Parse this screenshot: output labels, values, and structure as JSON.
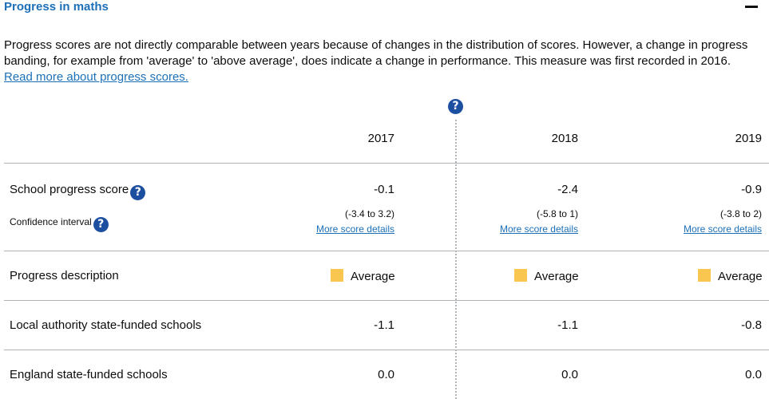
{
  "section": {
    "title": "Progress in maths",
    "intro": "Progress scores are not directly comparable between years because of changes in the distribution of scores. However, a change in progress banding, for example from 'average' to 'above average', does indicate a change in performance. This measure was first recorded in 2016.",
    "read_more": "Read more about progress scores."
  },
  "years": [
    "2017",
    "2018",
    "2019"
  ],
  "rows": {
    "school_progress_label": "School progress score",
    "confidence_label": "Confidence interval",
    "progress_desc_label": "Progress description",
    "la_label": "Local authority state-funded schools",
    "england_label": "England state-funded schools"
  },
  "scores": [
    "-0.1",
    "-2.4",
    "-0.9"
  ],
  "intervals": [
    "(-3.4 to 3.2)",
    "(-5.8 to 1)",
    "(-3.8 to 2)"
  ],
  "more_details": "More score details",
  "descriptions": [
    "Average",
    "Average",
    "Average"
  ],
  "la_values": [
    "-1.1",
    "-1.1",
    "-0.8"
  ],
  "england_values": [
    "0.0",
    "0.0",
    "0.0"
  ],
  "colors": {
    "average_swatch": "#f9c74f",
    "link": "#1d70b8",
    "help_icon": "#1d4fa0"
  }
}
